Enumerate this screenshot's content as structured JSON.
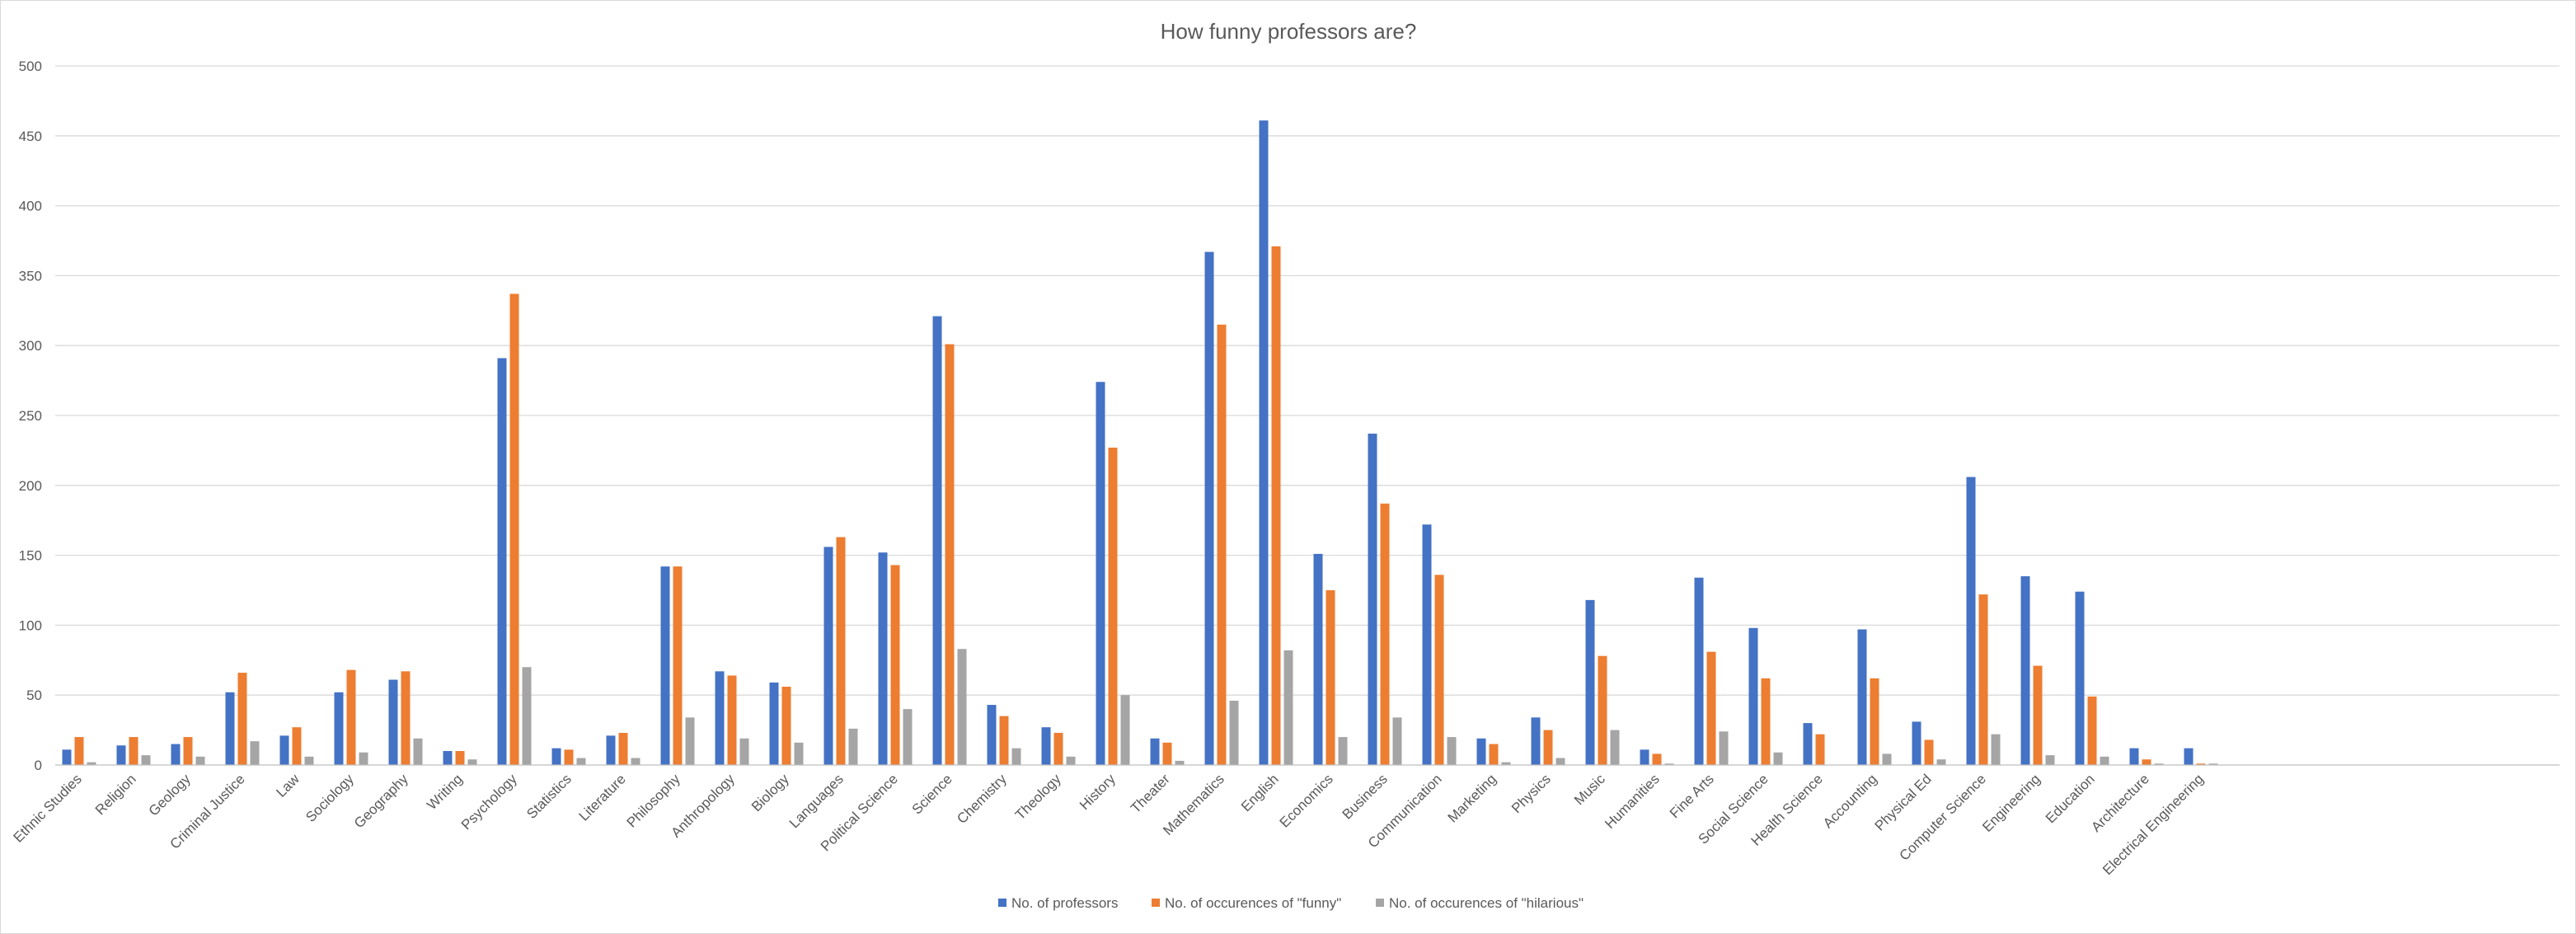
{
  "chart_data": {
    "type": "bar",
    "title": "How funny professors are?",
    "xlabel": "",
    "ylabel": "",
    "ylim": [
      0,
      500
    ],
    "yticks": [
      0,
      50,
      100,
      150,
      200,
      250,
      300,
      350,
      400,
      450,
      500
    ],
    "grid": true,
    "legend_position": "bottom",
    "categories": [
      "Ethnic Studies",
      "Religion",
      "Geology",
      "Criminal Justice",
      "Law",
      "Sociology",
      "Geography",
      "Writing",
      "Psychology",
      "Statistics",
      "Literature",
      "Philosophy",
      "Anthropology",
      "Biology",
      "Languages",
      "Political Science",
      "Science",
      "Chemistry",
      "Theology",
      "History",
      "Theater",
      "Mathematics",
      "English",
      "Economics",
      "Business",
      "Communication",
      "Marketing",
      "Physics",
      "Music",
      "Humanities",
      "Fine Arts",
      "Social Science",
      "Health Science",
      "Accounting",
      "Physical Ed",
      "Computer Science",
      "Engineering",
      "Education",
      "Architecture",
      "Electrical Engineering"
    ],
    "series": [
      {
        "name": "No. of professors",
        "color": "#4472c4",
        "values": [
          11,
          14,
          15,
          52,
          21,
          52,
          61,
          10,
          291,
          12,
          21,
          142,
          67,
          59,
          156,
          152,
          321,
          43,
          27,
          274,
          19,
          367,
          461,
          151,
          237,
          172,
          19,
          34,
          118,
          11,
          134,
          98,
          30,
          97,
          31,
          206,
          135,
          124,
          12,
          12
        ]
      },
      {
        "name": "No. of occurences of \"funny\"",
        "color": "#ed7d31",
        "values": [
          20,
          20,
          20,
          66,
          27,
          68,
          67,
          10,
          337,
          11,
          23,
          142,
          64,
          56,
          163,
          143,
          301,
          35,
          23,
          227,
          16,
          315,
          371,
          125,
          187,
          136,
          15,
          25,
          78,
          8,
          81,
          62,
          22,
          62,
          18,
          122,
          71,
          49,
          4,
          1
        ]
      },
      {
        "name": "No. of occurences of \"hilarious\"",
        "color": "#a5a5a5",
        "values": [
          2,
          7,
          6,
          17,
          6,
          9,
          19,
          4,
          70,
          5,
          5,
          34,
          19,
          16,
          26,
          40,
          83,
          12,
          6,
          50,
          3,
          46,
          82,
          20,
          34,
          20,
          2,
          5,
          25,
          1,
          24,
          9,
          0,
          8,
          4,
          22,
          7,
          6,
          1,
          1
        ]
      }
    ]
  }
}
